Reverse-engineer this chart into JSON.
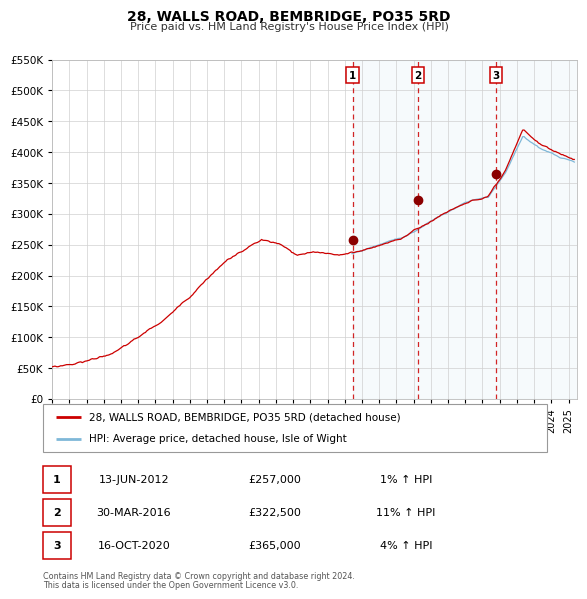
{
  "title": "28, WALLS ROAD, BEMBRIDGE, PO35 5RD",
  "subtitle": "Price paid vs. HM Land Registry's House Price Index (HPI)",
  "legend_line1": "28, WALLS ROAD, BEMBRIDGE, PO35 5RD (detached house)",
  "legend_line2": "HPI: Average price, detached house, Isle of Wight",
  "footer1": "Contains HM Land Registry data © Crown copyright and database right 2024.",
  "footer2": "This data is licensed under the Open Government Licence v3.0.",
  "hpi_color": "#7fb8d8",
  "price_color": "#cc0000",
  "marker_color": "#8b0000",
  "sale_color": "#cc0000",
  "ylim": [
    0,
    550000
  ],
  "yticks": [
    0,
    50000,
    100000,
    150000,
    200000,
    250000,
    300000,
    350000,
    400000,
    450000,
    500000,
    550000
  ],
  "sales": [
    {
      "label": "1",
      "date_str": "13-JUN-2012",
      "price": 257000,
      "pct": "1%",
      "x": 2012.45
    },
    {
      "label": "2",
      "date_str": "30-MAR-2016",
      "price": 322500,
      "pct": "11%",
      "x": 2016.25
    },
    {
      "label": "3",
      "date_str": "16-OCT-2020",
      "price": 365000,
      "pct": "4%",
      "x": 2020.79
    }
  ],
  "xmin": 1995.0,
  "xmax": 2025.5,
  "blue_bg_alpha": 0.15
}
